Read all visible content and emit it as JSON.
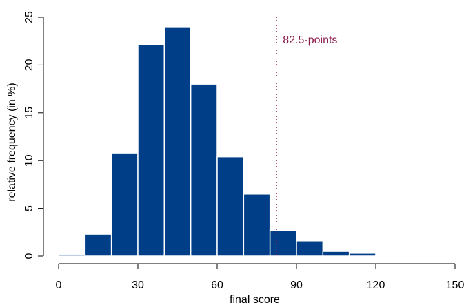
{
  "chart_data": {
    "type": "bar",
    "subtype": "histogram",
    "title": "",
    "xlabel": "final score",
    "ylabel": "relative frequency (in %)",
    "xlim": [
      0,
      150
    ],
    "ylim": [
      0,
      25
    ],
    "x_ticks": [
      0,
      30,
      60,
      90,
      120,
      150
    ],
    "y_ticks": [
      0,
      5,
      10,
      15,
      20,
      25
    ],
    "bin_edges": [
      0,
      10,
      20,
      30,
      40,
      50,
      60,
      70,
      80,
      90,
      100,
      110,
      120,
      130
    ],
    "values": [
      0.2,
      2.3,
      10.8,
      22.1,
      24.0,
      18.0,
      10.4,
      6.5,
      2.7,
      1.6,
      0.5,
      0.3,
      0.1
    ],
    "bar_color": "#003F87",
    "bar_edge_color": "#FFFFFF",
    "reference_line": {
      "x": 82.5,
      "label": "82.5-points",
      "color": "#8B1A4A",
      "style": "dotted"
    },
    "grid": false,
    "legend": "none"
  }
}
